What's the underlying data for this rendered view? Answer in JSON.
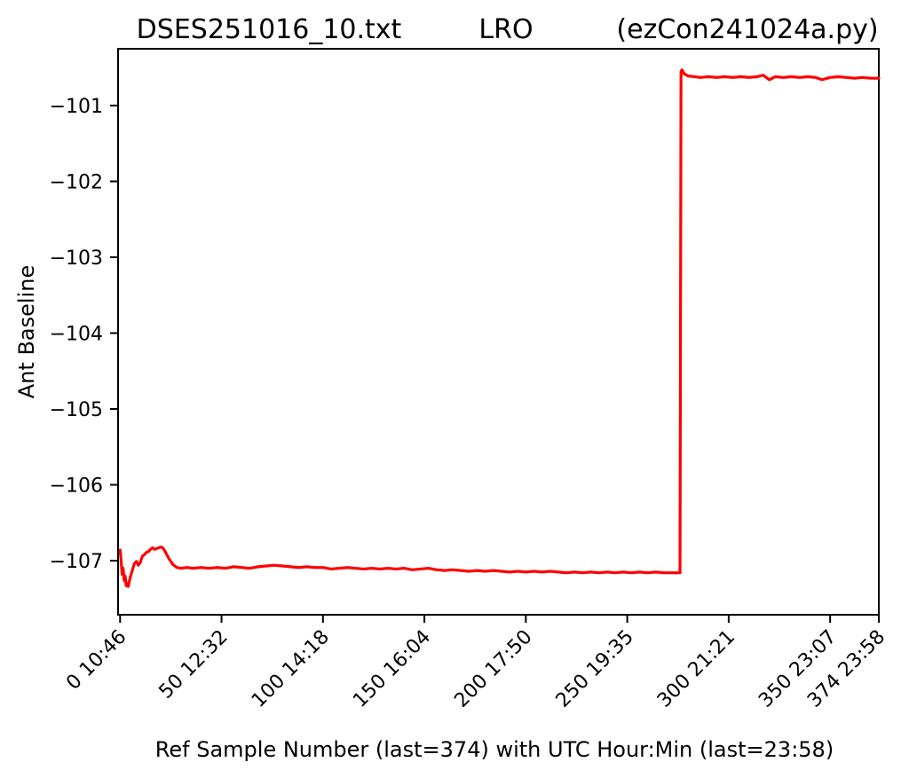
{
  "header": {
    "filename": "DSES251016_10.txt",
    "target": "LRO",
    "program": "(ezCon241024a.py)"
  },
  "chart_data": {
    "type": "line",
    "title": "DSES251016_10.txt    LRO    (ezCon241024a.py)",
    "xlabel": "Ref Sample Number (last=374) with UTC Hour:Min (last=23:58)",
    "ylabel": "Ant Baseline",
    "grid": false,
    "legend": "none",
    "background_color": "#ffffff",
    "axes_color": "#000000",
    "line_color": "#ff0000",
    "line_width": 3.2,
    "xlim": [
      -1,
      374
    ],
    "ylim": [
      -107.713,
      -100.252
    ],
    "xticks": [
      {
        "value": 0,
        "label": "0 10:46"
      },
      {
        "value": 50,
        "label": "50 12:32"
      },
      {
        "value": 100,
        "label": "100 14:18"
      },
      {
        "value": 150,
        "label": "150 16:04"
      },
      {
        "value": 200,
        "label": "200 17:50"
      },
      {
        "value": 250,
        "label": "250 19:35"
      },
      {
        "value": 300,
        "label": "300 21:21"
      },
      {
        "value": 350,
        "label": "350 23:07"
      },
      {
        "value": 374,
        "label": "374 23:58"
      }
    ],
    "yticks": [
      {
        "value": -101,
        "label": "−101"
      },
      {
        "value": -102,
        "label": "−102"
      },
      {
        "value": -103,
        "label": "−103"
      },
      {
        "value": -104,
        "label": "−104"
      },
      {
        "value": -105,
        "label": "−105"
      },
      {
        "value": -106,
        "label": "−106"
      },
      {
        "value": -107,
        "label": "−107"
      }
    ],
    "series": [
      {
        "name": "Ant Baseline",
        "points": [
          [
            0,
            -106.86
          ],
          [
            0.5,
            -107.0
          ],
          [
            1,
            -107.18
          ],
          [
            1.5,
            -107.1
          ],
          [
            2,
            -107.26
          ],
          [
            2.5,
            -107.2
          ],
          [
            3,
            -107.33
          ],
          [
            3.5,
            -107.3
          ],
          [
            4,
            -107.34
          ],
          [
            5,
            -107.22
          ],
          [
            6,
            -107.13
          ],
          [
            7,
            -107.04
          ],
          [
            8,
            -107.01
          ],
          [
            9,
            -107.06
          ],
          [
            10,
            -107.02
          ],
          [
            11,
            -106.94
          ],
          [
            12,
            -106.92
          ],
          [
            13,
            -106.89
          ],
          [
            14,
            -106.88
          ],
          [
            15,
            -106.85
          ],
          [
            16,
            -106.83
          ],
          [
            17,
            -106.85
          ],
          [
            18,
            -106.84
          ],
          [
            19,
            -106.83
          ],
          [
            20,
            -106.82
          ],
          [
            21,
            -106.83
          ],
          [
            22,
            -106.87
          ],
          [
            23,
            -106.92
          ],
          [
            24,
            -106.97
          ],
          [
            25,
            -107.01
          ],
          [
            26,
            -107.05
          ],
          [
            27,
            -107.07
          ],
          [
            28,
            -107.09
          ],
          [
            30,
            -107.1
          ],
          [
            33,
            -107.09
          ],
          [
            36,
            -107.1
          ],
          [
            40,
            -107.09
          ],
          [
            44,
            -107.1
          ],
          [
            48,
            -107.09
          ],
          [
            52,
            -107.1
          ],
          [
            56,
            -107.08
          ],
          [
            60,
            -107.09
          ],
          [
            64,
            -107.1
          ],
          [
            68,
            -107.08
          ],
          [
            72,
            -107.07
          ],
          [
            76,
            -107.06
          ],
          [
            80,
            -107.07
          ],
          [
            84,
            -107.08
          ],
          [
            88,
            -107.09
          ],
          [
            92,
            -107.08
          ],
          [
            96,
            -107.09
          ],
          [
            100,
            -107.09
          ],
          [
            104,
            -107.11
          ],
          [
            108,
            -107.1
          ],
          [
            112,
            -107.09
          ],
          [
            116,
            -107.1
          ],
          [
            120,
            -107.11
          ],
          [
            124,
            -107.1
          ],
          [
            128,
            -107.11
          ],
          [
            132,
            -107.1
          ],
          [
            136,
            -107.11
          ],
          [
            140,
            -107.1
          ],
          [
            144,
            -107.12
          ],
          [
            148,
            -107.11
          ],
          [
            152,
            -107.1
          ],
          [
            156,
            -107.12
          ],
          [
            160,
            -107.13
          ],
          [
            164,
            -107.12
          ],
          [
            168,
            -107.13
          ],
          [
            172,
            -107.14
          ],
          [
            176,
            -107.13
          ],
          [
            180,
            -107.14
          ],
          [
            184,
            -107.13
          ],
          [
            188,
            -107.14
          ],
          [
            192,
            -107.15
          ],
          [
            196,
            -107.14
          ],
          [
            200,
            -107.15
          ],
          [
            204,
            -107.14
          ],
          [
            208,
            -107.15
          ],
          [
            212,
            -107.14
          ],
          [
            216,
            -107.15
          ],
          [
            220,
            -107.16
          ],
          [
            224,
            -107.15
          ],
          [
            228,
            -107.16
          ],
          [
            232,
            -107.15
          ],
          [
            236,
            -107.16
          ],
          [
            240,
            -107.15
          ],
          [
            244,
            -107.16
          ],
          [
            248,
            -107.15
          ],
          [
            252,
            -107.16
          ],
          [
            256,
            -107.15
          ],
          [
            260,
            -107.16
          ],
          [
            264,
            -107.15
          ],
          [
            268,
            -107.16
          ],
          [
            272,
            -107.16
          ],
          [
            276,
            -107.16
          ],
          [
            276.5,
            -100.55
          ],
          [
            277,
            -100.53
          ],
          [
            278,
            -100.58
          ],
          [
            280,
            -100.61
          ],
          [
            283,
            -100.62
          ],
          [
            286,
            -100.63
          ],
          [
            290,
            -100.62
          ],
          [
            294,
            -100.63
          ],
          [
            298,
            -100.62
          ],
          [
            302,
            -100.63
          ],
          [
            306,
            -100.62
          ],
          [
            310,
            -100.63
          ],
          [
            314,
            -100.62
          ],
          [
            317,
            -100.6
          ],
          [
            320,
            -100.66
          ],
          [
            323,
            -100.62
          ],
          [
            327,
            -100.63
          ],
          [
            331,
            -100.62
          ],
          [
            335,
            -100.63
          ],
          [
            339,
            -100.62
          ],
          [
            343,
            -100.63
          ],
          [
            346,
            -100.66
          ],
          [
            350,
            -100.63
          ],
          [
            354,
            -100.62
          ],
          [
            358,
            -100.63
          ],
          [
            362,
            -100.64
          ],
          [
            366,
            -100.63
          ],
          [
            370,
            -100.64
          ],
          [
            374,
            -100.64
          ]
        ]
      }
    ]
  }
}
